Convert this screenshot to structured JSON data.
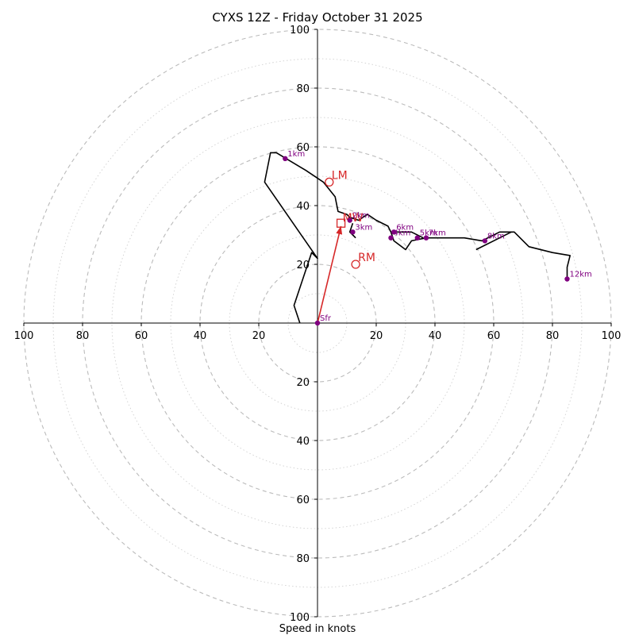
{
  "chart_data": {
    "type": "hodograph",
    "title": "CYXS 12Z - Friday October 31 2025",
    "xlabel": "Speed in knots",
    "ring_interval": 20,
    "max_speed": 100,
    "tick_values": [
      20,
      40,
      60,
      80,
      100
    ],
    "grid": true,
    "colors": {
      "hodograph_line": "#000000",
      "level_marker": "#800080",
      "storm_motion": "#d62728",
      "grid": "#bbbbbb"
    },
    "hodograph": {
      "u": [
        -6,
        -8,
        -2,
        0,
        -18,
        -16,
        -14,
        -4,
        2,
        6,
        7,
        10,
        11,
        14,
        17,
        20,
        24,
        25,
        26,
        30,
        32,
        37,
        42,
        50,
        56,
        58,
        62,
        67,
        72,
        80,
        86,
        85,
        85
      ],
      "v": [
        0,
        6,
        24,
        22,
        48,
        58,
        58,
        52,
        48,
        43,
        38,
        37,
        36,
        35,
        37,
        35,
        33,
        31,
        28,
        25,
        28,
        29,
        29,
        29,
        28,
        29,
        31,
        31,
        26,
        24,
        23,
        19,
        15
      ]
    },
    "path_extras": [
      {
        "u": [
          13,
          12,
          11,
          12
        ],
        "v": [
          29,
          30,
          31,
          34
        ]
      },
      {
        "u": [
          26,
          28,
          32,
          36
        ],
        "v": [
          31,
          31,
          31,
          29
        ]
      },
      {
        "u": [
          66,
          62,
          54
        ],
        "v": [
          31,
          29,
          25
        ]
      }
    ],
    "levels": [
      {
        "label": "Sfr",
        "u": 0,
        "v": 0
      },
      {
        "label": "1km",
        "u": -11,
        "v": 56
      },
      {
        "label": "2km",
        "u": 11,
        "v": 35
      },
      {
        "label": "3km",
        "u": 12,
        "v": 31
      },
      {
        "label": "4km",
        "u": 25,
        "v": 29
      },
      {
        "label": "5km",
        "u": 34,
        "v": 29
      },
      {
        "label": "6km",
        "u": 26,
        "v": 31
      },
      {
        "label": "7km",
        "u": 37,
        "v": 29
      },
      {
        "label": "8km",
        "u": 57,
        "v": 28
      },
      {
        "label": "12km",
        "u": 85,
        "v": 15
      }
    ],
    "storm_motion": {
      "LM": {
        "label": "LM",
        "u": 4,
        "v": 48
      },
      "RM": {
        "label": "RM",
        "u": 13,
        "v": 20
      },
      "MW": {
        "label": "MW",
        "u": 8,
        "v": 34
      },
      "shear_vector": {
        "u_start": 0,
        "v_start": 0,
        "u_end": 8,
        "v_end": 33
      }
    }
  }
}
